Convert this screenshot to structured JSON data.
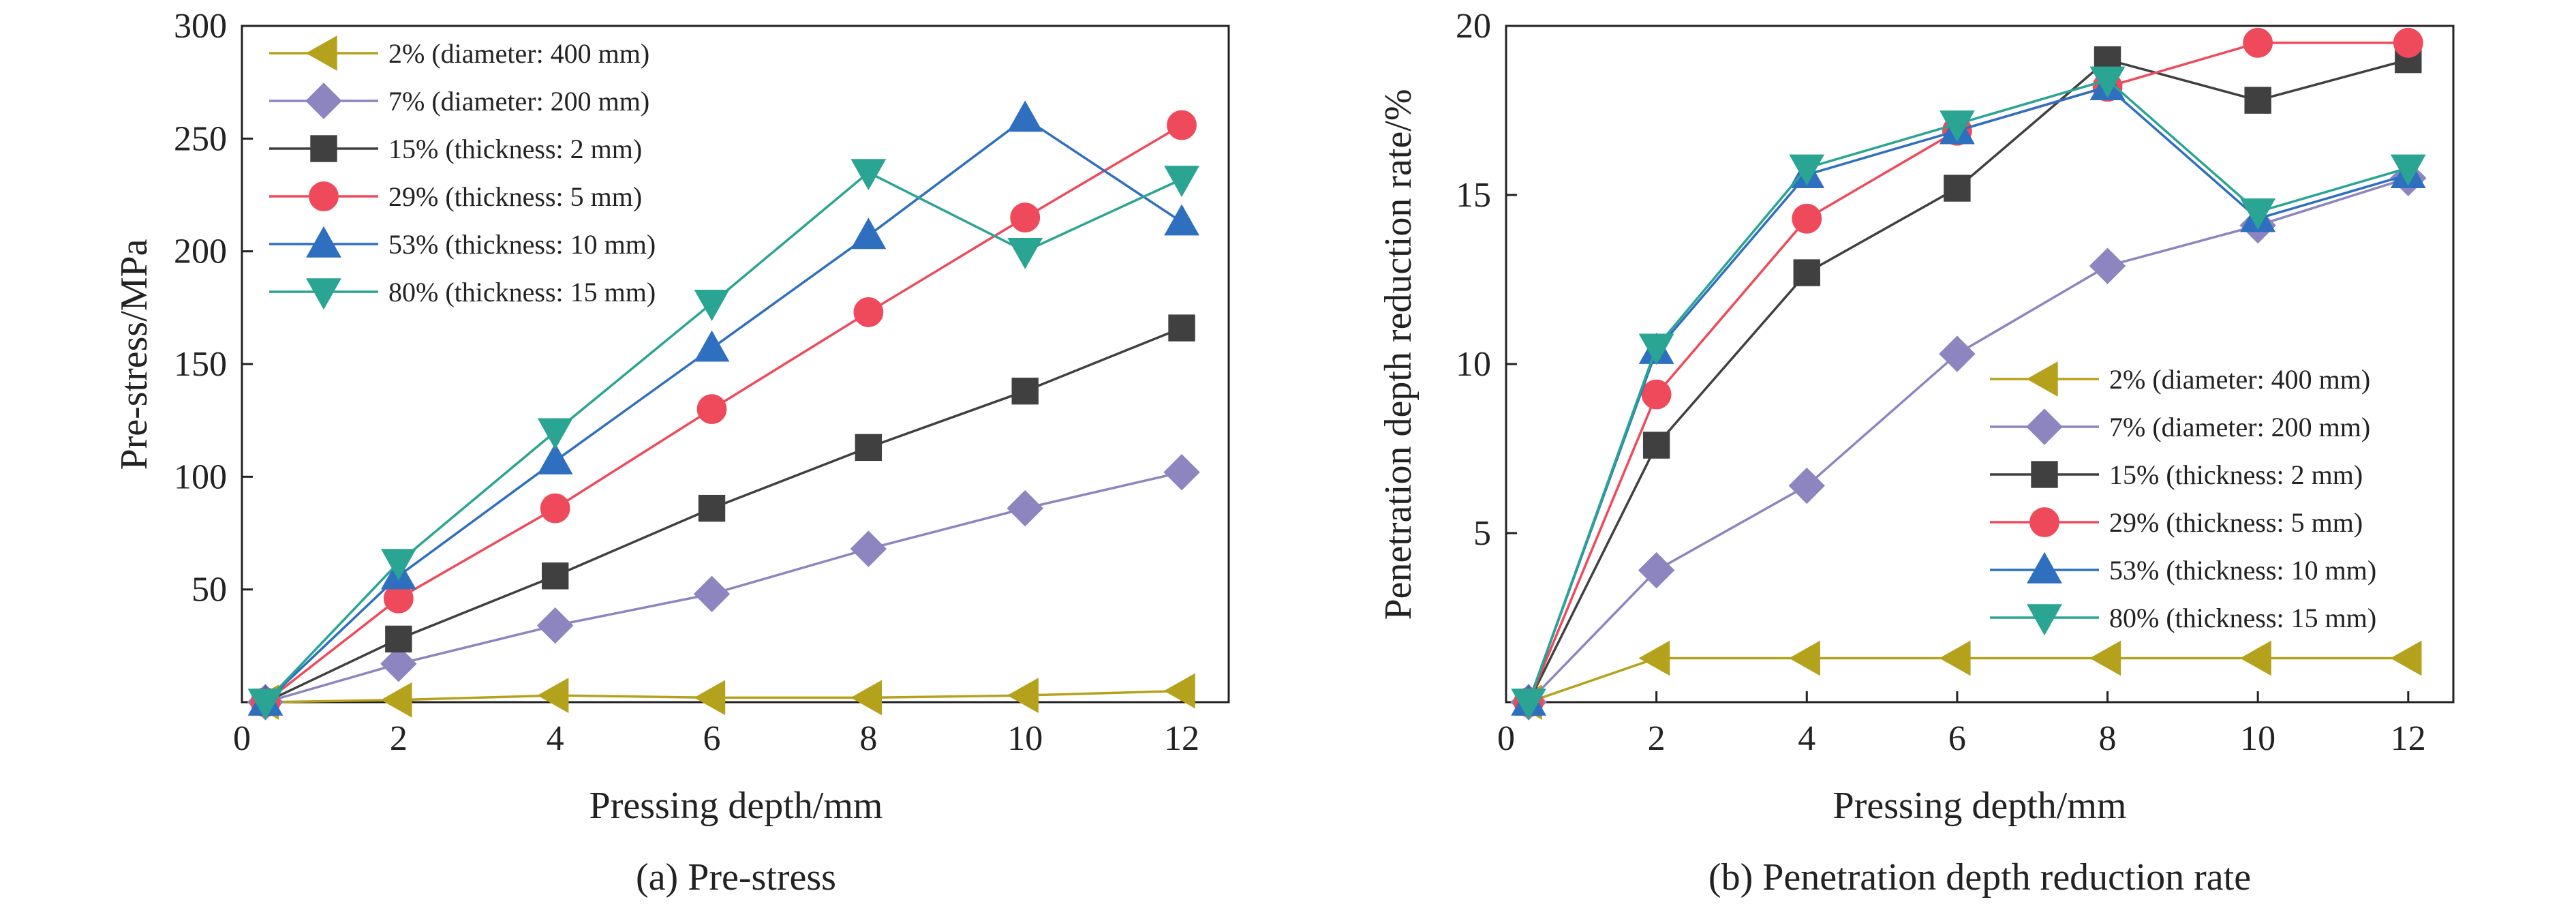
{
  "chart_data": [
    {
      "id": "a",
      "type": "line",
      "caption": "(a) Pre-stress",
      "xlabel": "Pressing depth/mm",
      "ylabel": "Pre-stress/MPa",
      "xlim": [
        0,
        12.6
      ],
      "ylim": [
        0,
        300
      ],
      "xticks": [
        0,
        2,
        4,
        6,
        8,
        10,
        12
      ],
      "yticks": [
        50,
        100,
        150,
        200,
        250,
        300
      ],
      "x_origin_label": "0",
      "legend_position": "top-left",
      "grid": false,
      "series": [
        {
          "name": "2% (diameter: 400 mm)",
          "color": "#b5a21c",
          "marker": "triangle-left",
          "x": [
            0.3,
            2,
            4,
            6,
            8,
            10,
            12
          ],
          "y": [
            0,
            1,
            3,
            2,
            2,
            3,
            5
          ]
        },
        {
          "name": "7% (diameter: 200 mm)",
          "color": "#8c85bf",
          "marker": "diamond",
          "x": [
            0.3,
            2,
            4,
            6,
            8,
            10,
            12
          ],
          "y": [
            0,
            17,
            34,
            48,
            68,
            86,
            102
          ]
        },
        {
          "name": "15% (thickness: 2 mm)",
          "color": "#404040",
          "marker": "square",
          "x": [
            0.3,
            2,
            4,
            6,
            8,
            10,
            12
          ],
          "y": [
            0,
            28,
            56,
            86,
            113,
            138,
            166
          ]
        },
        {
          "name": "29% (thickness: 5 mm)",
          "color": "#ef4a5b",
          "marker": "circle",
          "x": [
            0.3,
            2,
            4,
            6,
            8,
            10,
            12
          ],
          "y": [
            0,
            46,
            86,
            130,
            173,
            215,
            256
          ]
        },
        {
          "name": "53% (thickness: 10 mm)",
          "color": "#2f6fc0",
          "marker": "triangle-up",
          "x": [
            0.3,
            2,
            4,
            6,
            8,
            10,
            12
          ],
          "y": [
            0,
            56,
            107,
            157,
            207,
            259,
            213
          ]
        },
        {
          "name": "80% (thickness: 15 mm)",
          "color": "#2aa493",
          "marker": "triangle-down",
          "x": [
            0.3,
            2,
            4,
            6,
            8,
            10,
            12
          ],
          "y": [
            0,
            62,
            120,
            177,
            235,
            200,
            232
          ]
        }
      ]
    },
    {
      "id": "b",
      "type": "line",
      "caption": "(b) Penetration depth reduction rate",
      "xlabel": "Pressing depth/mm",
      "ylabel": "Penetration depth reduction rate/%",
      "xlim": [
        0,
        12.6
      ],
      "ylim": [
        0,
        20
      ],
      "xticks": [
        0,
        2,
        4,
        6,
        8,
        10,
        12
      ],
      "yticks": [
        5,
        10,
        15,
        20
      ],
      "x_origin_label": "0",
      "legend_position": "bottom-right",
      "grid": false,
      "series": [
        {
          "name": "2% (diameter: 400 mm)",
          "color": "#b5a21c",
          "marker": "triangle-left",
          "x": [
            0.3,
            2,
            4,
            6,
            8,
            10,
            12
          ],
          "y": [
            0,
            1.3,
            1.3,
            1.3,
            1.3,
            1.3,
            1.3
          ]
        },
        {
          "name": "7% (diameter: 200 mm)",
          "color": "#8c85bf",
          "marker": "diamond",
          "x": [
            0.3,
            2,
            4,
            6,
            8,
            10,
            12
          ],
          "y": [
            0,
            3.9,
            6.4,
            10.3,
            12.9,
            14.1,
            15.5
          ]
        },
        {
          "name": "15% (thickness: 2 mm)",
          "color": "#404040",
          "marker": "square",
          "x": [
            0.3,
            2,
            4,
            6,
            8,
            10,
            12
          ],
          "y": [
            0,
            7.6,
            12.7,
            15.2,
            19.0,
            17.8,
            19.0
          ]
        },
        {
          "name": "29% (thickness: 5 mm)",
          "color": "#ef4a5b",
          "marker": "circle",
          "x": [
            0.3,
            2,
            4,
            6,
            8,
            10,
            12
          ],
          "y": [
            0,
            9.1,
            14.3,
            16.9,
            18.2,
            19.5,
            19.5
          ]
        },
        {
          "name": "53% (thickness: 10 mm)",
          "color": "#2f6fc0",
          "marker": "triangle-up",
          "x": [
            0.3,
            2,
            4,
            6,
            8,
            10,
            12
          ],
          "y": [
            0,
            10.4,
            15.6,
            16.9,
            18.2,
            14.3,
            15.6
          ]
        },
        {
          "name": "80% (thickness: 15 mm)",
          "color": "#2aa493",
          "marker": "triangle-down",
          "x": [
            0.3,
            2,
            4,
            6,
            8,
            10,
            12
          ],
          "y": [
            0,
            10.5,
            15.8,
            17.1,
            18.4,
            14.5,
            15.8
          ]
        }
      ]
    }
  ]
}
